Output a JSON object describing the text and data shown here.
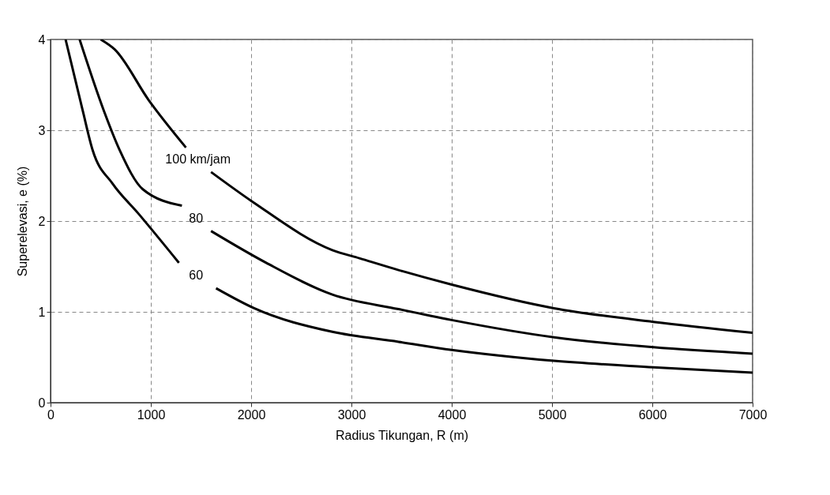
{
  "chart_data": {
    "type": "line",
    "xlabel": "Radius Tikungan, R (m)",
    "ylabel": "Superelevasi, e (%)",
    "xlim": [
      0,
      7000
    ],
    "ylim": [
      0,
      4
    ],
    "xticks": [
      0,
      1000,
      2000,
      3000,
      4000,
      5000,
      6000,
      7000
    ],
    "yticks": [
      0,
      1,
      2,
      3,
      4
    ],
    "grid": true,
    "legend": false,
    "line_style": "solid",
    "marker": "none",
    "series": [
      {
        "name": "100 km/jam",
        "color": "#000000",
        "x": [
          500,
          640,
          980,
          1350,
          1470,
          1600,
          2030,
          2810,
          3080,
          3470,
          4000,
          5020,
          6010,
          7000
        ],
        "values": [
          4,
          3.89,
          3.33,
          2.81,
          null,
          2.54,
          2.2,
          1.68,
          1.59,
          1.46,
          1.3,
          1.04,
          0.89,
          0.77
        ]
      },
      {
        "name": "80",
        "color": "#000000",
        "x": [
          290,
          530,
          690,
          920,
          1310,
          1450,
          1600,
          2150,
          2810,
          3470,
          4000,
          5020,
          6010,
          7000
        ],
        "values": [
          4,
          3.22,
          2.78,
          2.35,
          2.17,
          null,
          1.89,
          1.54,
          1.19,
          1.03,
          0.91,
          0.72,
          0.61,
          0.54
        ]
      },
      {
        "name": "60",
        "color": "#000000",
        "x": [
          150,
          320,
          420,
          620,
          870,
          1280,
          1450,
          1650,
          2030,
          2810,
          3470,
          4000,
          5020,
          6010,
          7000
        ],
        "values": [
          4,
          3.22,
          2.78,
          2.41,
          2.09,
          1.54,
          null,
          1.26,
          1.04,
          0.78,
          0.67,
          0.58,
          0.46,
          0.39,
          0.33
        ]
      }
    ]
  }
}
